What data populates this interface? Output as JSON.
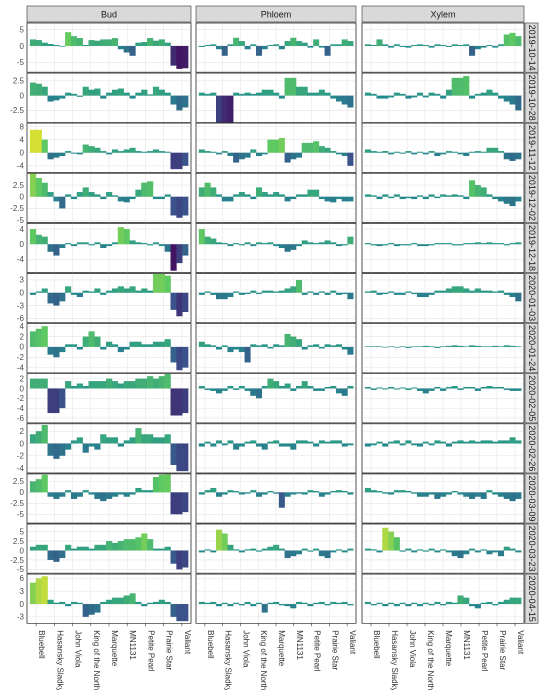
{
  "chart_data": {
    "type": "bar",
    "facet_columns": [
      "Bud",
      "Phloem",
      "Xylem"
    ],
    "facet_rows": [
      "2019-10-14",
      "2019-10-28",
      "2019-11-12",
      "2019-12-02",
      "2019-12-18",
      "2020-01-03",
      "2020-01-24",
      "2020-02-05",
      "2020-02-26",
      "2020-03-09",
      "2020-03-23",
      "2020-04-15"
    ],
    "categories": [
      "Bluebell",
      "Hasansky Sladky",
      "John Viola",
      "King of the North",
      "Marquette",
      "MN1131",
      "Petite Pearl",
      "Prairie Star",
      "Valiant"
    ],
    "category_ticks_shown": [
      "Bluebell",
      "Hasansky Sladky",
      "John Viola",
      "King of the North",
      "Marquette",
      "MN1131",
      "Petite Pearl",
      "Prairie Star",
      "Valiant"
    ],
    "bars_per_category": 3,
    "row_y_ticks": [
      [
        -5,
        0,
        5
      ],
      [
        -2.5,
        0.0,
        2.5
      ],
      [
        -4,
        0,
        4,
        8
      ],
      [
        -5.0,
        -2.5,
        0.0,
        2.5
      ],
      [
        -4,
        0,
        4
      ],
      [
        -6,
        -3,
        0,
        3
      ],
      [
        -4,
        -2,
        0,
        2,
        4
      ],
      [
        -6,
        -4,
        -2,
        0,
        2
      ],
      [
        -4,
        -2,
        0,
        2
      ],
      [
        -5.0,
        -2.5,
        0.0,
        2.5
      ],
      [
        -5.0,
        -2.5,
        0.0,
        2.5,
        5.0
      ],
      [
        -3,
        0,
        3,
        6
      ]
    ],
    "row_y_limits": [
      [
        -8,
        7
      ],
      [
        -4.5,
        3.8
      ],
      [
        -6,
        9
      ],
      [
        -5.5,
        5
      ],
      [
        -7.5,
        5.5
      ],
      [
        -7,
        4.5
      ],
      [
        -5,
        4.5
      ],
      [
        -7,
        3
      ],
      [
        -4.8,
        3.2
      ],
      [
        -7,
        4.2
      ],
      [
        -6,
        7
      ],
      [
        -4.5,
        7
      ]
    ],
    "color_scale": {
      "low": "#3b0f70",
      "mid": "#21908d",
      "high": "#fde725",
      "range": [
        -8,
        8
      ]
    },
    "values": {
      "Bud": [
        [
          2,
          1.8,
          1,
          0.6,
          0.3,
          -0.2,
          4.2,
          3,
          2.4,
          0.3,
          1.8,
          1.6,
          2,
          2,
          2.4,
          -1,
          -2,
          -3,
          1,
          1.2,
          2.4,
          1.6,
          2,
          1,
          -6,
          -7,
          -6.8
        ],
        [
          2.2,
          2,
          1.5,
          -1,
          -0.8,
          -0.5,
          0.5,
          0.3,
          -0.2,
          1.5,
          1,
          1.2,
          -0.5,
          0.5,
          1,
          1.2,
          0.5,
          -0.5,
          0.5,
          1,
          0.2,
          1.5,
          1,
          0.5,
          -1.5,
          -2.5,
          -2
        ],
        [
          7,
          7,
          4,
          -2,
          -1.5,
          -1,
          0.5,
          -0.3,
          -0.5,
          2.5,
          2,
          1.5,
          0.5,
          -0.5,
          1,
          0.5,
          1,
          1.5,
          0.5,
          0.3,
          0.5,
          1,
          0.5,
          0.3,
          -5,
          -5,
          -4
        ],
        [
          5,
          4,
          3,
          1,
          -1,
          -2.5,
          0.5,
          -0.5,
          1,
          2,
          1,
          0.5,
          -0.5,
          1,
          0.3,
          -1,
          -1.2,
          -0.5,
          1.5,
          3,
          3.3,
          -0.5,
          -0.5,
          0.5,
          -4,
          -4.5,
          -4
        ],
        [
          4,
          2.5,
          2,
          -2,
          -3,
          -1,
          0.3,
          -0.5,
          0.5,
          0.5,
          -0.3,
          0.5,
          -1,
          -0.5,
          0.5,
          4.5,
          4,
          1,
          0.5,
          0.3,
          -0.3,
          0.5,
          -0.5,
          -2,
          -7,
          -5,
          -3
        ],
        [
          -0.5,
          0.3,
          1,
          -2.5,
          -3,
          -2,
          1.5,
          -0.5,
          -1,
          0.5,
          0.3,
          1,
          -0.5,
          0.5,
          1,
          1.5,
          1,
          1.5,
          0.5,
          1,
          0.5,
          4.5,
          4.5,
          4,
          -4,
          -5.5,
          -4.5
        ],
        [
          3,
          3.5,
          4,
          -1.5,
          -2,
          -1,
          0.5,
          0.5,
          -0.5,
          2,
          3,
          2,
          -0.5,
          1,
          0.5,
          -1,
          -0.5,
          1,
          1,
          0.5,
          0.5,
          1,
          1,
          1.5,
          -3,
          -4.5,
          -4
        ],
        [
          2,
          2,
          2,
          -5,
          -5,
          -4,
          1.5,
          0.5,
          1,
          0.5,
          1.5,
          1.5,
          1.5,
          2,
          1.5,
          1,
          1.5,
          1.5,
          2,
          2,
          2.5,
          2,
          2.5,
          3,
          -5.5,
          -5.5,
          -5
        ],
        [
          1.5,
          2,
          3,
          -2,
          -2.5,
          -2,
          -1,
          0.5,
          1,
          -1.5,
          -0.5,
          -1,
          1.5,
          1,
          1,
          -0.5,
          0.5,
          1,
          2.5,
          1.5,
          1.5,
          1,
          1,
          1.5,
          -3.5,
          -4.5,
          -4.5
        ],
        [
          2.5,
          3,
          4,
          -1,
          -1.5,
          -1,
          0.5,
          -1.5,
          -1,
          0.5,
          -0.5,
          -1.5,
          -2,
          -1.5,
          -1,
          -0.5,
          -1,
          -0.5,
          1,
          0.5,
          0.5,
          3.5,
          4,
          4.2,
          -5,
          -5,
          -4.5
        ],
        [
          1,
          1.5,
          1.5,
          -2.5,
          -3,
          -2,
          1.5,
          0.5,
          1,
          1,
          0.5,
          1.5,
          1.5,
          2.5,
          2,
          2.5,
          3,
          3,
          3.5,
          4.5,
          3,
          0.5,
          0.5,
          1,
          -3.5,
          -5,
          -4.5
        ],
        [
          5,
          6,
          6.5,
          1,
          0.3,
          0.5,
          -0.5,
          0.5,
          0.3,
          -3,
          -2.5,
          -2,
          0.5,
          1,
          1.5,
          1.5,
          2,
          2.5,
          0.5,
          -0.5,
          0.3,
          0.5,
          1,
          0.5,
          -3,
          -4,
          -4
        ]
      ],
      "Phloem": [
        [
          -0.3,
          0.3,
          0.5,
          -1,
          -3,
          0.5,
          2.5,
          1.5,
          -1,
          0.5,
          -3,
          -1,
          0.3,
          0.5,
          -1,
          1.5,
          2.5,
          1.5,
          1,
          -0.5,
          2,
          -0.5,
          -3,
          0.5,
          0.5,
          2,
          1.5
        ],
        [
          0.5,
          0.3,
          0.5,
          -5,
          -6,
          -6.5,
          0.5,
          0.3,
          0.5,
          0.3,
          0.5,
          1,
          1,
          0.5,
          -0.5,
          3,
          3,
          1.5,
          1.5,
          0.5,
          0.5,
          1,
          0.5,
          -0.5,
          -1,
          -1.5,
          -2
        ],
        [
          1,
          0.5,
          0.3,
          -0.5,
          0.5,
          -1,
          -3,
          -2,
          -1.5,
          1,
          -1,
          -0.5,
          4,
          4,
          4.5,
          -3,
          -2,
          -1.5,
          3,
          3,
          3.5,
          2,
          1.5,
          0.5,
          -0.5,
          -1,
          -4
        ],
        [
          2,
          3,
          2,
          0.5,
          -1,
          -1,
          0.5,
          1,
          0.5,
          -0.5,
          2,
          1,
          0.5,
          1,
          0.5,
          -1,
          -0.5,
          0.5,
          0.5,
          1.5,
          1.5,
          -0.5,
          -1,
          -1.2,
          -0.5,
          -1,
          -1
        ],
        [
          4,
          2,
          1.5,
          0.5,
          0.3,
          -0.5,
          0.3,
          -0.3,
          0.5,
          -0.5,
          0.5,
          0.3,
          0.5,
          -0.5,
          -1,
          -2,
          -1.5,
          -0.5,
          1,
          0.5,
          0.3,
          0.5,
          1,
          0.5,
          -0.5,
          -0.3,
          2
        ],
        [
          -0.5,
          0.3,
          -0.5,
          -1.5,
          -1.5,
          -1,
          0.3,
          -0.5,
          -0.3,
          0.5,
          -0.3,
          0.5,
          0.5,
          0.3,
          0.5,
          1,
          1.5,
          3,
          -0.5,
          0.3,
          -0.5,
          0.3,
          -0.5,
          0.5,
          -0.5,
          -0.3,
          -1.5
        ],
        [
          1,
          0.5,
          0.3,
          -0.5,
          0.3,
          -1,
          -0.5,
          -1,
          -3,
          0.5,
          0.3,
          0.5,
          -0.3,
          0.5,
          0.3,
          2.5,
          2,
          1.5,
          -0.5,
          0.3,
          0.5,
          -0.3,
          0.5,
          0.3,
          0.5,
          -0.5,
          -1.5
        ],
        [
          0.5,
          -0.3,
          -0.5,
          -1,
          -0.5,
          0.5,
          -0.3,
          0.5,
          -0.5,
          -1.5,
          -2,
          0.5,
          2,
          1.5,
          0.5,
          1,
          -0.5,
          0.5,
          1.5,
          0.5,
          -0.5,
          -0.5,
          0.3,
          0.5,
          -1,
          -1.5,
          0.5
        ],
        [
          -0.5,
          0.3,
          -0.5,
          0.5,
          -0.3,
          0.5,
          -1,
          -0.5,
          0.3,
          0.5,
          -0.5,
          -1,
          0.3,
          0.5,
          -0.5,
          -0.5,
          -1,
          0.5,
          0.5,
          0.3,
          -0.5,
          0.5,
          0.3,
          0.5,
          0.5,
          -0.5,
          -0.3
        ],
        [
          -0.5,
          0.5,
          1,
          -1,
          -0.5,
          0.5,
          0.3,
          -0.5,
          -0.3,
          0.5,
          -1,
          -0.5,
          0.3,
          -0.3,
          -3.5,
          -1,
          -0.5,
          -0.3,
          -0.5,
          0.5,
          0.3,
          -1,
          -0.5,
          0.3,
          0.5,
          0.3,
          -0.5
        ],
        [
          -0.5,
          0.3,
          -0.5,
          5.5,
          4.5,
          1.5,
          0.3,
          -0.5,
          0.3,
          0.5,
          -0.3,
          0.5,
          1,
          1.5,
          0.5,
          -2,
          -1.5,
          -1,
          0.5,
          -0.3,
          0.5,
          -1.5,
          -2,
          -0.5,
          0.3,
          -0.5,
          0.5
        ],
        [
          0.5,
          0.3,
          0.5,
          -0.5,
          0.3,
          -0.5,
          0.3,
          -0.3,
          0.5,
          -0.5,
          0.3,
          -2,
          0.3,
          0.5,
          -0.3,
          -0.5,
          -1,
          0.5,
          0.3,
          -0.5,
          0.3,
          0.5,
          -0.3,
          0.5,
          0.3,
          0.5,
          -0.3
        ]
      ],
      "Xylem": [
        [
          0.5,
          0.3,
          2,
          0.5,
          -0.5,
          0.5,
          -0.3,
          -0.5,
          0.3,
          0.5,
          0.3,
          -0.5,
          0.5,
          0.3,
          -0.3,
          0.5,
          0.3,
          0.5,
          -3,
          -1,
          -0.5,
          0.3,
          -0.5,
          0.5,
          3.5,
          4,
          3
        ],
        [
          0.5,
          0.3,
          -0.5,
          -0.5,
          -0.3,
          0.5,
          0.3,
          -0.5,
          -0.3,
          0.5,
          -0.3,
          0.5,
          0.3,
          -0.5,
          1,
          3,
          3,
          3.3,
          -0.5,
          0.3,
          0.5,
          1,
          0.5,
          -0.5,
          -1,
          -1.5,
          -2.5
        ],
        [
          1,
          0.5,
          0.3,
          0.5,
          -0.5,
          0.3,
          -0.3,
          0.5,
          -0.5,
          0.3,
          -0.5,
          0.5,
          -1,
          -0.5,
          0.5,
          0.3,
          -0.5,
          -1,
          0.3,
          0.5,
          0.3,
          1.5,
          1.5,
          0.5,
          -2,
          -2.5,
          -2
        ],
        [
          0.5,
          0.3,
          -0.5,
          0.5,
          -0.3,
          0.5,
          -0.5,
          -0.3,
          -0.5,
          0.3,
          -0.5,
          0.5,
          -0.3,
          0.5,
          0.3,
          0.5,
          0.3,
          -0.5,
          3.5,
          2.5,
          2,
          0.5,
          -0.5,
          -1,
          -1.5,
          -2,
          -1
        ],
        [
          0.3,
          -0.3,
          -0.5,
          -0.3,
          0.3,
          -0.5,
          -0.3,
          -0.3,
          0.3,
          -0.5,
          -0.5,
          -0.3,
          0.3,
          0.3,
          0.3,
          -0.3,
          -0.3,
          0.3,
          0.3,
          0.5,
          0.3,
          0.5,
          0.3,
          0.3,
          -0.3,
          0.3,
          0.5
        ],
        [
          0.3,
          0.5,
          -0.5,
          -0.3,
          0.3,
          -0.5,
          -0.5,
          0.3,
          -0.3,
          -1,
          -1,
          -0.5,
          0.5,
          0.5,
          1,
          1.5,
          1.5,
          1,
          0.5,
          1,
          0.5,
          0.5,
          0.3,
          0.5,
          -0.5,
          -1,
          -2
        ],
        [
          0.1,
          0.1,
          0.1,
          -0.1,
          0.1,
          -0.1,
          0.1,
          -0.2,
          0.1,
          0.1,
          0.2,
          0.1,
          -0.2,
          0.1,
          0.2,
          0.3,
          0.2,
          0.1,
          0.3,
          0.2,
          0.1,
          0.1,
          0.2,
          0.1,
          0.3,
          0.2,
          0.1
        ],
        [
          0.3,
          -0.3,
          0.2,
          -0.2,
          0.3,
          -0.2,
          0.2,
          -0.3,
          0.2,
          -0.5,
          -1,
          -0.5,
          0.3,
          -0.5,
          0.3,
          0.5,
          -0.3,
          0.3,
          0.3,
          -0.5,
          0.3,
          0.5,
          0.3,
          0.3,
          -0.3,
          -0.5,
          -0.5
        ],
        [
          -0.5,
          -0.3,
          0.3,
          -0.5,
          0.3,
          0.5,
          -0.3,
          0.5,
          -0.3,
          -0.5,
          0.3,
          -0.3,
          0.5,
          0.3,
          -0.5,
          0.3,
          0.5,
          0.3,
          0.5,
          0.3,
          0.5,
          0.5,
          0.3,
          0.5,
          0.5,
          1,
          0.5
        ],
        [
          1,
          0.5,
          0.3,
          -0.3,
          -0.5,
          0.5,
          0.5,
          0.3,
          -0.3,
          -1,
          -1,
          -0.5,
          -1.5,
          -1,
          -0.5,
          0.3,
          -0.5,
          -1,
          -1.5,
          -1,
          -1.5,
          0.5,
          -0.5,
          -1,
          -1.5,
          -2,
          -1.5
        ],
        [
          0.5,
          0.3,
          -0.5,
          6,
          5,
          3.5,
          -0.3,
          0.5,
          -0.5,
          0.3,
          -0.3,
          0.5,
          -0.5,
          0.3,
          -0.5,
          -1.5,
          -2,
          -1,
          0.5,
          -0.5,
          0.3,
          -1,
          -0.5,
          -1.5,
          1,
          0.5,
          -0.5
        ],
        [
          0.5,
          -0.3,
          0.3,
          -0.5,
          0.3,
          -0.5,
          0.3,
          -0.5,
          0.3,
          -0.5,
          0.3,
          -0.3,
          0.5,
          -0.3,
          0.5,
          0.3,
          2,
          1.5,
          -0.5,
          -1,
          0.3,
          0.5,
          -0.3,
          0.5,
          1,
          1.5,
          1.5
        ]
      ]
    }
  }
}
